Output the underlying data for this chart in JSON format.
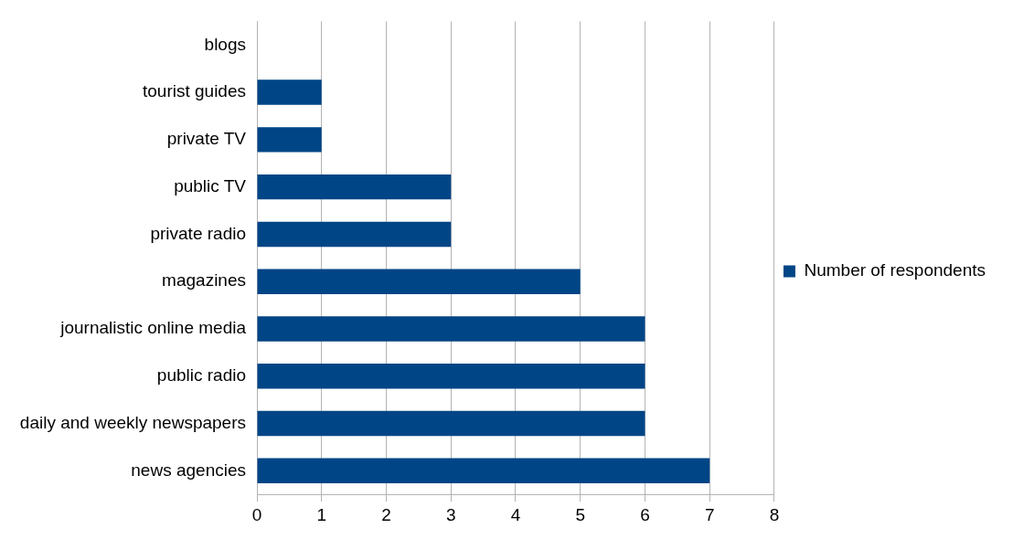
{
  "chart_data": {
    "type": "bar",
    "orientation": "horizontal",
    "categories": [
      "blogs",
      "tourist guides",
      "private TV",
      "public TV",
      "private radio",
      "magazines",
      "journalistic online media",
      "public radio",
      "daily and weekly newspapers",
      "news agencies"
    ],
    "series": [
      {
        "name": "Number of respondents",
        "color": "#004586",
        "values": [
          0,
          1,
          1,
          3,
          3,
          5,
          6,
          6,
          6,
          7
        ]
      }
    ],
    "xlim": [
      0,
      8
    ],
    "xticks": [
      0,
      1,
      2,
      3,
      4,
      5,
      6,
      7,
      8
    ],
    "grid": "x",
    "legend": "right"
  }
}
